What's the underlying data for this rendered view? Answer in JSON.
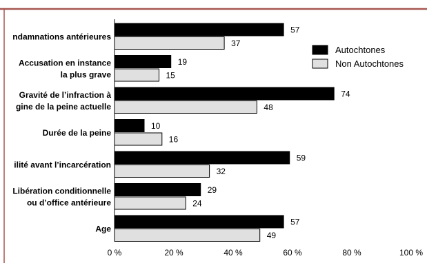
{
  "chart_data": {
    "type": "bar",
    "orientation": "horizontal",
    "categories": [
      [
        "ndamnations antérieures"
      ],
      [
        "Accusation en instance",
        "la plus grave"
      ],
      [
        "Gravité de l’infraction à",
        "gine de la peine actuelle"
      ],
      [
        "Durée de la peine"
      ],
      [
        "ilité avant l’incarcération"
      ],
      [
        "Libération conditionnelle",
        "ou d’office antérieure"
      ],
      [
        "Age"
      ]
    ],
    "series": [
      {
        "name": "Autochtones",
        "values": [
          57,
          19,
          74,
          10,
          59,
          29,
          57
        ],
        "color": "#000000"
      },
      {
        "name": "Non Autochtones",
        "values": [
          37,
          15,
          48,
          16,
          32,
          24,
          49
        ],
        "color": "#e0e0e0"
      }
    ],
    "x_ticks": [
      "0 %",
      "20 %",
      "40 %",
      "60 %",
      "80 %",
      "100 %"
    ],
    "xlim": [
      0,
      100
    ],
    "grid": false,
    "legend_position": "top-right",
    "data_labels": true,
    "colors": {
      "top_rule": "#a6554f",
      "side_rule": "#a6554f",
      "axis": "#000000"
    }
  }
}
